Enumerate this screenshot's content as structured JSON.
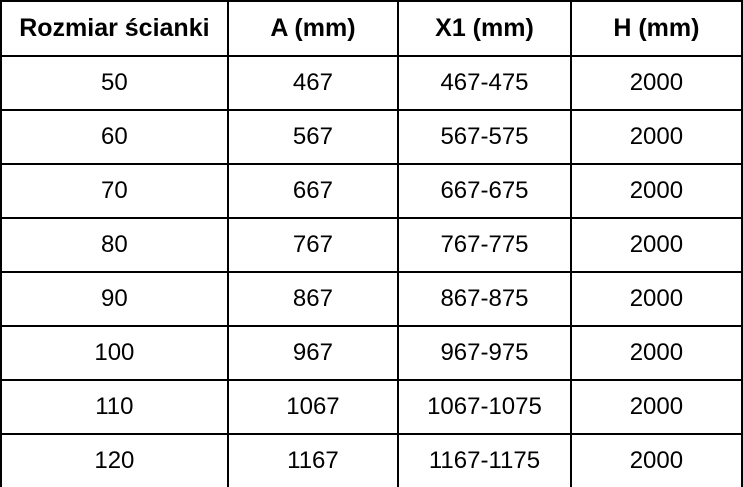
{
  "table": {
    "name": "wall-panel-size-table",
    "headers": [
      "Rozmiar ścianki",
      "A (mm)",
      "X1 (mm)",
      "H (mm)"
    ],
    "rows": [
      [
        "50",
        "467",
        "467-475",
        "2000"
      ],
      [
        "60",
        "567",
        "567-575",
        "2000"
      ],
      [
        "70",
        "667",
        "667-675",
        "2000"
      ],
      [
        "80",
        "767",
        "767-775",
        "2000"
      ],
      [
        "90",
        "867",
        "867-875",
        "2000"
      ],
      [
        "100",
        "967",
        "967-975",
        "2000"
      ],
      [
        "110",
        "1067",
        "1067-1075",
        "2000"
      ],
      [
        "120",
        "1167",
        "1167-1175",
        "2000"
      ]
    ]
  },
  "chart_data": {
    "type": "table",
    "columns": [
      "Rozmiar ścianki",
      "A (mm)",
      "X1 (mm)",
      "H (mm)"
    ],
    "rows": [
      [
        "50",
        "467",
        "467-475",
        "2000"
      ],
      [
        "60",
        "567",
        "567-575",
        "2000"
      ],
      [
        "70",
        "667",
        "667-675",
        "2000"
      ],
      [
        "80",
        "767",
        "767-775",
        "2000"
      ],
      [
        "90",
        "867",
        "867-875",
        "2000"
      ],
      [
        "100",
        "967",
        "967-975",
        "2000"
      ],
      [
        "110",
        "1067",
        "1067-1075",
        "2000"
      ],
      [
        "120",
        "1167",
        "1167-1175",
        "2000"
      ]
    ]
  },
  "colors": {
    "border": "#000000",
    "text": "#000000",
    "background": "#ffffff"
  }
}
